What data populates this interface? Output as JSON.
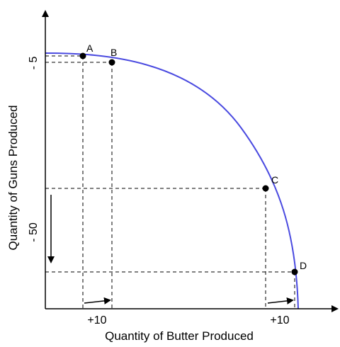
{
  "diagram": {
    "x_axis_label": "Quantity of Butter Produced",
    "y_axis_label": "Quantity of Guns Produced",
    "y_annotations": [
      "- 5",
      "- 50"
    ],
    "x_annotations": [
      "+10",
      "+10"
    ],
    "points": [
      {
        "name": "A"
      },
      {
        "name": "B"
      },
      {
        "name": "C"
      },
      {
        "name": "D"
      }
    ],
    "colors": {
      "curve": "#4a4ae0",
      "axes": "#000000",
      "guides": "#000000"
    }
  }
}
